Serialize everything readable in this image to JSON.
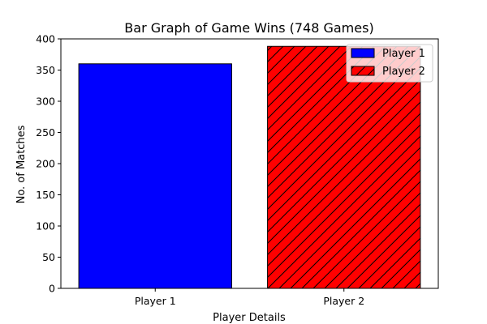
{
  "chart_data": {
    "type": "bar",
    "title": "Bar Graph of Game Wins (748 Games)",
    "xlabel": "Player Details",
    "ylabel": "No. of Matches",
    "categories": [
      "Player 1",
      "Player 2"
    ],
    "series": [
      {
        "name": "Player 1",
        "category": "Player 1",
        "value": 360,
        "color": "#0000ff",
        "hatch": "none"
      },
      {
        "name": "Player 2",
        "category": "Player 2",
        "value": 388,
        "color": "#ff0000",
        "hatch": "diagonal"
      }
    ],
    "values": [
      360,
      388
    ],
    "ylim": [
      0,
      400
    ],
    "yticks": [
      0,
      50,
      100,
      150,
      200,
      250,
      300,
      350,
      400
    ],
    "ytick_labels": [
      "0",
      "50",
      "100",
      "150",
      "200",
      "250",
      "300",
      "350",
      "400"
    ],
    "grid": false,
    "legend": {
      "placement": "top-right",
      "entries": [
        "Player 1",
        "Player 2"
      ]
    },
    "edge_color": "#000000"
  }
}
